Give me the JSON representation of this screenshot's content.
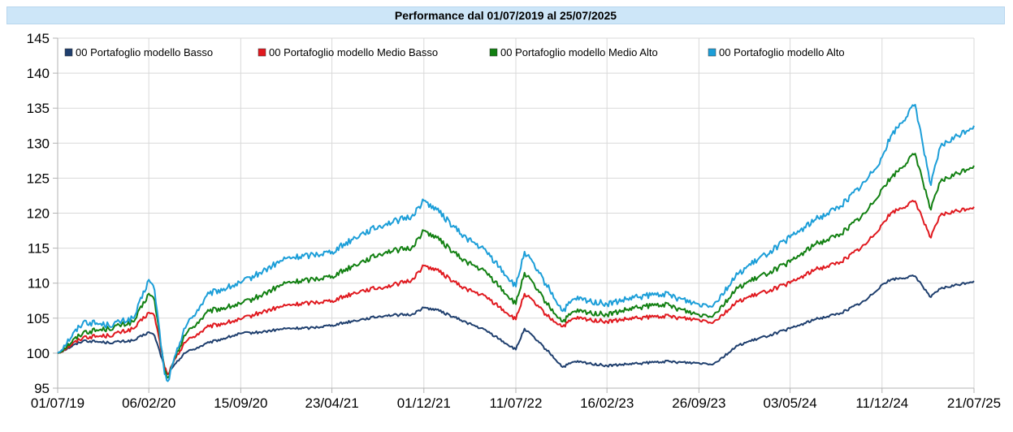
{
  "chart_data": {
    "type": "line",
    "title": "Performance dal 01/07/2019 al 25/07/2025",
    "xlabel": "",
    "ylabel": "",
    "ylim": [
      95,
      145
    ],
    "yticks": [
      95,
      100,
      105,
      110,
      115,
      120,
      125,
      130,
      135,
      140,
      145
    ],
    "xticks": [
      "01/07/19",
      "06/02/20",
      "15/09/20",
      "23/04/21",
      "01/12/21",
      "11/07/22",
      "16/02/23",
      "26/09/23",
      "03/05/24",
      "11/12/24",
      "21/07/25"
    ],
    "grid": true,
    "legend_position": "top",
    "x": [
      "01/07/19",
      "01/09/19",
      "01/11/19",
      "01/01/20",
      "06/02/20",
      "20/02/20",
      "15/03/20",
      "23/03/20",
      "01/05/20",
      "01/07/20",
      "15/09/20",
      "01/11/20",
      "01/01/21",
      "01/03/21",
      "23/04/21",
      "01/07/21",
      "01/09/21",
      "01/11/21",
      "01/12/21",
      "01/01/22",
      "01/03/22",
      "01/05/22",
      "11/07/22",
      "01/08/22",
      "01/10/22",
      "01/11/22",
      "01/12/22",
      "16/02/23",
      "01/05/23",
      "01/07/23",
      "26/09/23",
      "01/11/23",
      "01/01/24",
      "03/05/24",
      "01/07/24",
      "01/09/24",
      "01/11/24",
      "11/12/24",
      "01/01/25",
      "01/03/25",
      "08/04/25",
      "01/05/25",
      "21/07/25"
    ],
    "series": [
      {
        "name": "00 Portafoglio modello Basso",
        "color": "#1f3f6e",
        "values": [
          100.0,
          101.8,
          101.5,
          101.8,
          103.0,
          102.5,
          98.0,
          97.0,
          100.0,
          101.5,
          102.8,
          103.0,
          103.5,
          103.6,
          104.0,
          104.8,
          105.4,
          105.5,
          106.5,
          106.2,
          104.7,
          103.2,
          100.5,
          103.5,
          100.0,
          98.0,
          98.8,
          98.2,
          98.5,
          98.8,
          98.6,
          98.5,
          101.2,
          103.5,
          104.8,
          105.7,
          107.5,
          109.8,
          110.5,
          111.0,
          108.0,
          109.2,
          110.3
        ]
      },
      {
        "name": "00 Portafoglio modello Medio Basso",
        "color": "#e0191f",
        "values": [
          100.0,
          102.3,
          102.5,
          103.5,
          105.8,
          105.3,
          98.0,
          97.0,
          101.5,
          103.8,
          104.8,
          105.8,
          106.8,
          107.2,
          107.5,
          108.9,
          109.5,
          110.4,
          112.5,
          111.9,
          109.5,
          108.0,
          104.8,
          108.5,
          105.0,
          103.8,
          105.0,
          104.5,
          105.0,
          105.3,
          104.8,
          104.5,
          107.5,
          110.0,
          111.9,
          113.0,
          115.5,
          118.4,
          120.0,
          121.7,
          116.5,
          119.7,
          120.9
        ]
      },
      {
        "name": "00 Portafoglio modello Medio Alto",
        "color": "#128012",
        "values": [
          100.0,
          103.0,
          103.5,
          104.5,
          108.5,
          107.5,
          97.5,
          96.5,
          102.5,
          106.0,
          107.0,
          108.2,
          110.0,
          110.5,
          111.0,
          113.0,
          114.5,
          115.0,
          117.5,
          116.5,
          113.5,
          111.5,
          107.0,
          111.5,
          106.5,
          104.5,
          106.0,
          105.5,
          106.5,
          107.0,
          105.5,
          105.5,
          109.5,
          113.0,
          115.5,
          117.0,
          120.0,
          123.5,
          125.0,
          128.5,
          120.5,
          124.5,
          126.8
        ]
      },
      {
        "name": "00 Portafoglio modello Alto",
        "color": "#1c9ed8",
        "values": [
          100.0,
          104.5,
          104.0,
          105.0,
          110.5,
          109.0,
          97.0,
          96.0,
          103.5,
          108.5,
          110.0,
          111.5,
          113.5,
          114.0,
          114.5,
          117.0,
          118.5,
          119.5,
          121.8,
          120.5,
          117.0,
          114.5,
          109.5,
          114.5,
          109.0,
          106.0,
          107.8,
          107.0,
          108.0,
          108.5,
          107.0,
          107.0,
          111.5,
          116.5,
          119.0,
          121.0,
          124.5,
          128.0,
          131.0,
          135.5,
          124.0,
          129.5,
          132.5
        ]
      }
    ]
  }
}
